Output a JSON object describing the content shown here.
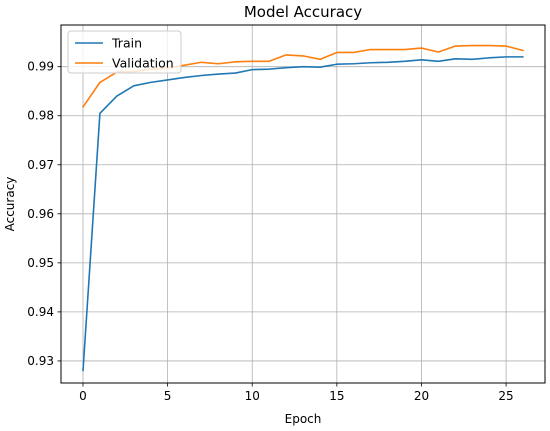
{
  "chart_data": {
    "type": "line",
    "title": "Model Accuracy",
    "xlabel": "Epoch",
    "ylabel": "Accuracy",
    "xlim": [
      -1.3,
      27.3
    ],
    "ylim": [
      0.9255,
      0.9985
    ],
    "xticks": [
      0,
      5,
      10,
      15,
      20,
      25
    ],
    "yticks": [
      0.93,
      0.94,
      0.95,
      0.96,
      0.97,
      0.98,
      0.99
    ],
    "grid": true,
    "legend_position": "top-left",
    "series": [
      {
        "name": "Train",
        "color": "#1f77b4",
        "x": [
          0,
          1,
          2,
          3,
          4,
          5,
          6,
          7,
          8,
          9,
          10,
          11,
          12,
          13,
          14,
          15,
          16,
          17,
          18,
          19,
          20,
          21,
          22,
          23,
          24,
          25,
          26
        ],
        "y": [
          0.928,
          0.9805,
          0.984,
          0.9861,
          0.9868,
          0.9873,
          0.9878,
          0.9882,
          0.9885,
          0.9887,
          0.9894,
          0.9895,
          0.9898,
          0.99,
          0.9899,
          0.9905,
          0.9906,
          0.9908,
          0.9909,
          0.9911,
          0.9914,
          0.9911,
          0.9916,
          0.9915,
          0.9918,
          0.992,
          0.992
        ]
      },
      {
        "name": "Validation",
        "color": "#ff7f0e",
        "x": [
          0,
          1,
          2,
          3,
          4,
          5,
          6,
          7,
          8,
          9,
          10,
          11,
          12,
          13,
          14,
          15,
          16,
          17,
          18,
          19,
          20,
          21,
          22,
          23,
          24,
          25,
          26
        ],
        "y": [
          0.9818,
          0.9868,
          0.9889,
          0.989,
          0.9895,
          0.9897,
          0.9903,
          0.9909,
          0.9906,
          0.991,
          0.9911,
          0.9911,
          0.9924,
          0.9922,
          0.9915,
          0.9929,
          0.9929,
          0.9935,
          0.9935,
          0.9935,
          0.9938,
          0.993,
          0.9942,
          0.9943,
          0.9943,
          0.9942,
          0.9933
        ]
      }
    ]
  }
}
